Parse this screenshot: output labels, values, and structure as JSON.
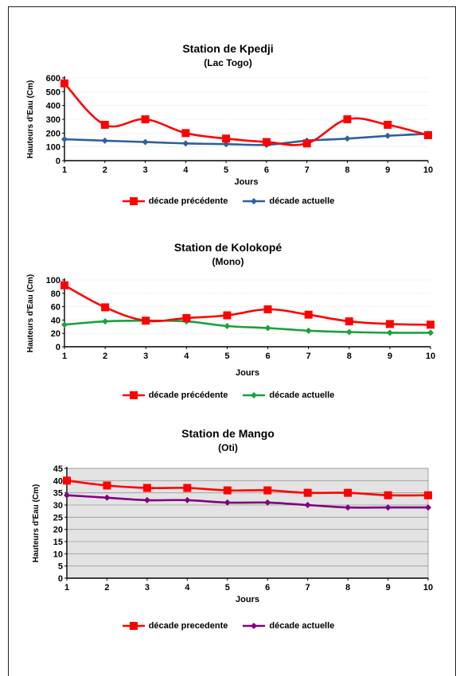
{
  "chart_data": [
    {
      "type": "line",
      "title": "Station de Kpedji",
      "subtitle": "(Lac Togo)",
      "xlabel": "Jours",
      "ylabel": "Hauteurs d'Eau (Cm)",
      "x": [
        1,
        2,
        3,
        4,
        5,
        6,
        7,
        8,
        9,
        10
      ],
      "ylim": [
        0,
        600
      ],
      "yticks": [
        0,
        100,
        200,
        300,
        400,
        500,
        600
      ],
      "grid": false,
      "plot_background": "#ffffff",
      "legend_position": "bottom",
      "series": [
        {
          "name": "décade précédente",
          "color": "#ff0000",
          "marker": "square",
          "values": [
            560,
            260,
            300,
            200,
            160,
            135,
            125,
            300,
            260,
            185
          ]
        },
        {
          "name": "décade actuelle",
          "color": "#2e5f9e",
          "marker": "diamond",
          "values": [
            155,
            145,
            135,
            125,
            120,
            115,
            145,
            160,
            180,
            195
          ]
        }
      ]
    },
    {
      "type": "line",
      "title": "Station de Kolokopé",
      "subtitle": "(Mono)",
      "xlabel": "Jours",
      "ylabel": "Hauteurs d'Eau (Cm)",
      "x": [
        1,
        2,
        3,
        4,
        5,
        6,
        7,
        8,
        9,
        10
      ],
      "ylim": [
        0,
        100
      ],
      "yticks": [
        0,
        20,
        40,
        60,
        80,
        100
      ],
      "grid": false,
      "plot_background": "#ffffff",
      "legend_position": "bottom",
      "series": [
        {
          "name": "décade précédente",
          "color": "#ff0000",
          "marker": "square",
          "values": [
            92,
            59,
            39,
            43,
            47,
            56,
            48,
            38,
            34,
            33
          ]
        },
        {
          "name": "décade actuelle",
          "color": "#1aa13c",
          "marker": "diamond",
          "values": [
            33,
            38,
            39,
            38,
            31,
            28,
            24,
            22,
            21,
            21
          ]
        }
      ]
    },
    {
      "type": "line",
      "title": "Station de Mango",
      "subtitle": "(Oti)",
      "xlabel": "Jours",
      "ylabel": "Hauteurs d'Eau (Cm)",
      "x": [
        1,
        2,
        3,
        4,
        5,
        6,
        7,
        8,
        9,
        10
      ],
      "ylim": [
        0,
        45
      ],
      "yticks": [
        0,
        5,
        10,
        15,
        20,
        25,
        30,
        35,
        40,
        45
      ],
      "grid": true,
      "plot_background": "#e3e3e3",
      "legend_position": "bottom",
      "series": [
        {
          "name": "décade precedente",
          "color": "#ff0000",
          "marker": "square",
          "values": [
            40,
            38,
            37,
            37,
            36,
            36,
            35,
            35,
            34,
            34
          ]
        },
        {
          "name": "décade actuelle",
          "color": "#800080",
          "marker": "diamond",
          "values": [
            34,
            33,
            32,
            32,
            31,
            31,
            30,
            29,
            29,
            29
          ]
        }
      ]
    }
  ]
}
